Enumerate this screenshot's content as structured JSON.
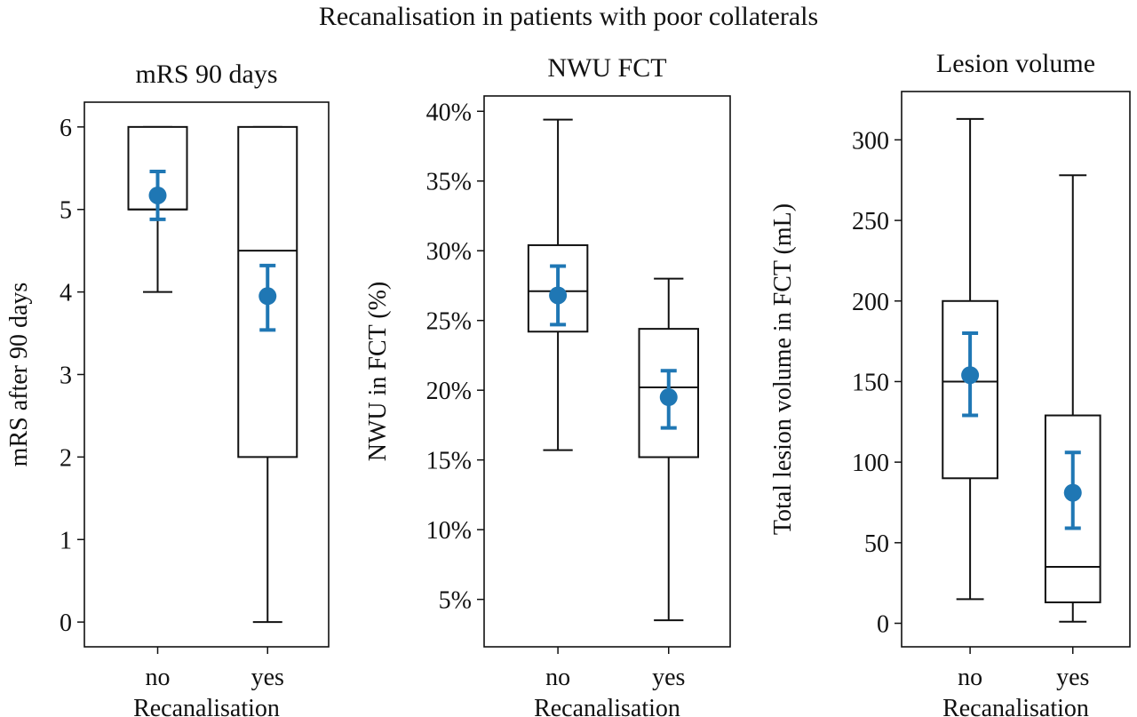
{
  "figure": {
    "title": "Recanalisation in patients with poor collaterals"
  },
  "chart_data": [
    {
      "type": "box",
      "title": "mRS 90 days",
      "xlabel": "Recanalisation",
      "ylabel": "mRS after 90 days",
      "categories": [
        "no",
        "yes"
      ],
      "ylim": [
        -0.3,
        6.3
      ],
      "yticks": [
        0,
        1,
        2,
        3,
        4,
        5,
        6
      ],
      "ytick_labels": [
        "0",
        "1",
        "2",
        "3",
        "4",
        "5",
        "6"
      ],
      "boxes": [
        {
          "category": "no",
          "whisker_low": 4,
          "q1": 5,
          "median": 5,
          "q3": 6,
          "whisker_high": 6
        },
        {
          "category": "yes",
          "whisker_low": 0,
          "q1": 2,
          "median": 4.5,
          "q3": 6,
          "whisker_high": 6
        }
      ],
      "means": [
        {
          "category": "no",
          "mean": 5.17,
          "ci_low": 4.88,
          "ci_high": 5.46
        },
        {
          "category": "yes",
          "mean": 3.95,
          "ci_low": 3.54,
          "ci_high": 4.32
        }
      ],
      "mean_color": "#1f77b4"
    },
    {
      "type": "box",
      "title": "NWU FCT",
      "xlabel": "Recanalisation",
      "ylabel": "NWU in FCT (%)",
      "categories": [
        "no",
        "yes"
      ],
      "ylim": [
        1.6,
        41.1
      ],
      "yticks": [
        5,
        10,
        15,
        20,
        25,
        30,
        35,
        40
      ],
      "ytick_labels": [
        "5%",
        "10%",
        "15%",
        "20%",
        "25%",
        "30%",
        "35%",
        "40%"
      ],
      "boxes": [
        {
          "category": "no",
          "whisker_low": 15.7,
          "q1": 24.2,
          "median": 27.1,
          "q3": 30.4,
          "whisker_high": 39.4
        },
        {
          "category": "yes",
          "whisker_low": 3.5,
          "q1": 15.2,
          "median": 20.2,
          "q3": 24.4,
          "whisker_high": 28.0
        }
      ],
      "means": [
        {
          "category": "no",
          "mean": 26.8,
          "ci_low": 24.7,
          "ci_high": 28.9
        },
        {
          "category": "yes",
          "mean": 19.5,
          "ci_low": 17.3,
          "ci_high": 21.4
        }
      ],
      "mean_color": "#1f77b4"
    },
    {
      "type": "box",
      "title": "Lesion volume",
      "xlabel": "Recanalisation",
      "ylabel": "Total lesion volume in FCT (mL)",
      "categories": [
        "no",
        "yes"
      ],
      "ylim": [
        -14.6,
        330
      ],
      "yticks": [
        0,
        50,
        100,
        150,
        200,
        250,
        300
      ],
      "ytick_labels": [
        "0",
        "50",
        "100",
        "150",
        "200",
        "250",
        "300"
      ],
      "boxes": [
        {
          "category": "no",
          "whisker_low": 15,
          "q1": 90,
          "median": 150,
          "q3": 200,
          "whisker_high": 313
        },
        {
          "category": "yes",
          "whisker_low": 1,
          "q1": 13,
          "median": 35,
          "q3": 129,
          "whisker_high": 278
        }
      ],
      "means": [
        {
          "category": "no",
          "mean": 154,
          "ci_low": 129,
          "ci_high": 180
        },
        {
          "category": "yes",
          "mean": 81,
          "ci_low": 59,
          "ci_high": 106
        }
      ],
      "mean_color": "#1f77b4"
    }
  ]
}
